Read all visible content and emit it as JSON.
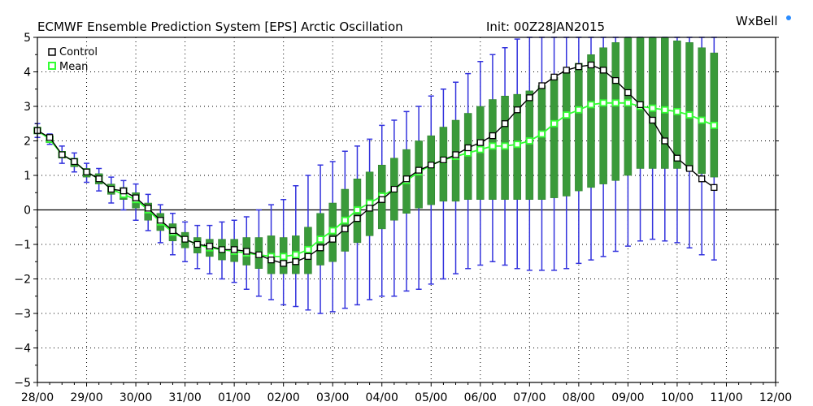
{
  "header": {
    "title": "ECMWF Ensemble Prediction System [EPS] Arctic Oscillation",
    "init": "Init: 00Z28JAN2015",
    "brand": "WxBell"
  },
  "legend": {
    "items": [
      {
        "label": "Control",
        "marker_color": "#000000"
      },
      {
        "label": "Mean",
        "marker_color": "#33ff33"
      }
    ]
  },
  "colors": {
    "control": "#000000",
    "mean": "#33ff33",
    "box_fill": "#3a9a3a",
    "whisker": "#3333dd",
    "brand_dot": "#2a8cff"
  },
  "chart_data": {
    "type": "line",
    "title": "ECMWF Ensemble Prediction System [EPS] Arctic Oscillation",
    "xlabel": "",
    "ylabel": "",
    "ylim": [
      -5,
      5
    ],
    "xlim": [
      0,
      15
    ],
    "grid": true,
    "legend_position": "top-left",
    "x_tick_labels": [
      "28/00",
      "29/00",
      "30/00",
      "31/00",
      "01/00",
      "02/00",
      "03/00",
      "04/00",
      "05/00",
      "06/00",
      "07/00",
      "08/00",
      "09/00",
      "10/00",
      "11/00",
      "12/00"
    ],
    "y_ticks": [
      -5,
      -4,
      -3,
      -2,
      -1,
      0,
      1,
      2,
      3,
      4,
      5
    ],
    "control": [
      [
        0,
        2.3
      ],
      [
        0.25,
        2.1
      ],
      [
        0.5,
        1.6
      ],
      [
        0.75,
        1.4
      ],
      [
        1,
        1.1
      ],
      [
        1.25,
        0.9
      ],
      [
        1.5,
        0.6
      ],
      [
        1.75,
        0.55
      ],
      [
        2,
        0.35
      ],
      [
        2.25,
        0.05
      ],
      [
        2.5,
        -0.3
      ],
      [
        2.75,
        -0.6
      ],
      [
        3,
        -0.85
      ],
      [
        3.25,
        -1.0
      ],
      [
        3.5,
        -1.05
      ],
      [
        3.75,
        -1.15
      ],
      [
        4,
        -1.15
      ],
      [
        4.25,
        -1.2
      ],
      [
        4.5,
        -1.3
      ],
      [
        4.75,
        -1.45
      ],
      [
        5,
        -1.55
      ],
      [
        5.25,
        -1.5
      ],
      [
        5.5,
        -1.35
      ],
      [
        5.75,
        -1.1
      ],
      [
        6,
        -0.85
      ],
      [
        6.25,
        -0.55
      ],
      [
        6.5,
        -0.25
      ],
      [
        6.75,
        0.05
      ],
      [
        7,
        0.3
      ],
      [
        7.25,
        0.6
      ],
      [
        7.5,
        0.9
      ],
      [
        7.75,
        1.15
      ],
      [
        8,
        1.3
      ],
      [
        8.25,
        1.45
      ],
      [
        8.5,
        1.6
      ],
      [
        8.75,
        1.8
      ],
      [
        9,
        1.95
      ],
      [
        9.25,
        2.15
      ],
      [
        9.5,
        2.5
      ],
      [
        9.75,
        2.9
      ],
      [
        10,
        3.25
      ],
      [
        10.25,
        3.6
      ],
      [
        10.5,
        3.85
      ],
      [
        10.75,
        4.05
      ],
      [
        11,
        4.15
      ],
      [
        11.25,
        4.2
      ],
      [
        11.5,
        4.05
      ],
      [
        11.75,
        3.75
      ],
      [
        12,
        3.4
      ],
      [
        12.25,
        3.05
      ],
      [
        12.5,
        2.6
      ],
      [
        12.75,
        2.0
      ],
      [
        13,
        1.5
      ],
      [
        13.25,
        1.2
      ],
      [
        13.5,
        0.9
      ],
      [
        13.75,
        0.65
      ]
    ],
    "mean": [
      [
        0,
        2.3
      ],
      [
        0.25,
        2.05
      ],
      [
        0.5,
        1.6
      ],
      [
        0.75,
        1.4
      ],
      [
        1,
        1.1
      ],
      [
        1.25,
        0.9
      ],
      [
        1.5,
        0.6
      ],
      [
        1.75,
        0.45
      ],
      [
        2,
        0.3
      ],
      [
        2.25,
        0.0
      ],
      [
        2.5,
        -0.35
      ],
      [
        2.75,
        -0.65
      ],
      [
        3,
        -0.85
      ],
      [
        3.25,
        -1.0
      ],
      [
        3.5,
        -1.1
      ],
      [
        3.75,
        -1.15
      ],
      [
        4,
        -1.2
      ],
      [
        4.25,
        -1.25
      ],
      [
        4.5,
        -1.3
      ],
      [
        4.75,
        -1.35
      ],
      [
        5,
        -1.35
      ],
      [
        5.25,
        -1.3
      ],
      [
        5.5,
        -1.15
      ],
      [
        5.75,
        -0.85
      ],
      [
        6,
        -0.6
      ],
      [
        6.25,
        -0.3
      ],
      [
        6.5,
        0.0
      ],
      [
        6.75,
        0.2
      ],
      [
        7,
        0.4
      ],
      [
        7.25,
        0.6
      ],
      [
        7.5,
        0.85
      ],
      [
        7.75,
        1.1
      ],
      [
        8,
        1.3
      ],
      [
        8.25,
        1.45
      ],
      [
        8.5,
        1.55
      ],
      [
        8.75,
        1.65
      ],
      [
        9,
        1.75
      ],
      [
        9.25,
        1.85
      ],
      [
        9.5,
        1.85
      ],
      [
        9.75,
        1.9
      ],
      [
        10,
        2.0
      ],
      [
        10.25,
        2.2
      ],
      [
        10.5,
        2.5
      ],
      [
        10.75,
        2.75
      ],
      [
        11,
        2.9
      ],
      [
        11.25,
        3.05
      ],
      [
        11.5,
        3.1
      ],
      [
        11.75,
        3.1
      ],
      [
        12,
        3.1
      ],
      [
        12.25,
        3.0
      ],
      [
        12.5,
        2.95
      ],
      [
        12.75,
        2.9
      ],
      [
        13,
        2.85
      ],
      [
        13.25,
        2.75
      ],
      [
        13.5,
        2.6
      ],
      [
        13.75,
        2.45
      ]
    ],
    "spread": [
      [
        0,
        2.2,
        2.4,
        2.1,
        2.5
      ],
      [
        0.25,
        1.95,
        2.15,
        1.9,
        2.2
      ],
      [
        0.5,
        1.5,
        1.7,
        1.35,
        1.85
      ],
      [
        0.75,
        1.25,
        1.5,
        1.1,
        1.65
      ],
      [
        1,
        0.95,
        1.2,
        0.8,
        1.35
      ],
      [
        1.25,
        0.75,
        1.05,
        0.55,
        1.2
      ],
      [
        1.5,
        0.45,
        0.75,
        0.2,
        0.95
      ],
      [
        1.75,
        0.3,
        0.65,
        0.0,
        0.85
      ],
      [
        2,
        0.05,
        0.5,
        -0.3,
        0.75
      ],
      [
        2.25,
        -0.3,
        0.2,
        -0.6,
        0.45
      ],
      [
        2.5,
        -0.6,
        -0.1,
        -0.95,
        0.15
      ],
      [
        2.75,
        -0.9,
        -0.4,
        -1.3,
        -0.1
      ],
      [
        3,
        -1.1,
        -0.65,
        -1.5,
        -0.35
      ],
      [
        3.25,
        -1.25,
        -0.8,
        -1.7,
        -0.45
      ],
      [
        3.5,
        -1.35,
        -0.85,
        -1.85,
        -0.45
      ],
      [
        3.75,
        -1.45,
        -0.85,
        -2.0,
        -0.35
      ],
      [
        4,
        -1.5,
        -0.85,
        -2.1,
        -0.3
      ],
      [
        4.25,
        -1.6,
        -0.8,
        -2.3,
        -0.2
      ],
      [
        4.5,
        -1.7,
        -0.8,
        -2.5,
        0.0
      ],
      [
        4.75,
        -1.85,
        -0.75,
        -2.6,
        0.15
      ],
      [
        5,
        -1.85,
        -0.8,
        -2.75,
        0.3
      ],
      [
        5.25,
        -1.85,
        -0.75,
        -2.8,
        0.7
      ],
      [
        5.5,
        -1.85,
        -0.5,
        -2.9,
        1.0
      ],
      [
        5.75,
        -1.6,
        -0.1,
        -3.0,
        1.3
      ],
      [
        6,
        -1.5,
        0.2,
        -2.95,
        1.4
      ],
      [
        6.25,
        -1.2,
        0.6,
        -2.85,
        1.7
      ],
      [
        6.5,
        -0.95,
        0.9,
        -2.75,
        1.85
      ],
      [
        6.75,
        -0.75,
        1.1,
        -2.6,
        2.05
      ],
      [
        7,
        -0.55,
        1.3,
        -2.5,
        2.45
      ],
      [
        7.25,
        -0.3,
        1.5,
        -2.5,
        2.6
      ],
      [
        7.5,
        -0.1,
        1.75,
        -2.35,
        2.85
      ],
      [
        7.75,
        0.05,
        2.0,
        -2.3,
        3.0
      ],
      [
        8,
        0.15,
        2.15,
        -2.15,
        3.3
      ],
      [
        8.25,
        0.25,
        2.4,
        -2.0,
        3.5
      ],
      [
        8.5,
        0.25,
        2.6,
        -1.85,
        3.7
      ],
      [
        8.75,
        0.3,
        2.8,
        -1.7,
        3.95
      ],
      [
        9,
        0.3,
        3.0,
        -1.6,
        4.3
      ],
      [
        9.25,
        0.3,
        3.2,
        -1.5,
        4.5
      ],
      [
        9.5,
        0.3,
        3.3,
        -1.6,
        4.7
      ],
      [
        9.75,
        0.3,
        3.35,
        -1.7,
        4.95
      ],
      [
        10,
        0.3,
        3.45,
        -1.75,
        5.0
      ],
      [
        10.25,
        0.3,
        3.6,
        -1.75,
        5.0
      ],
      [
        10.5,
        0.35,
        3.85,
        -1.75,
        5.0
      ],
      [
        10.75,
        0.4,
        4.0,
        -1.7,
        5.0
      ],
      [
        11,
        0.55,
        4.25,
        -1.55,
        5.0
      ],
      [
        11.25,
        0.65,
        4.5,
        -1.45,
        5.0
      ],
      [
        11.5,
        0.75,
        4.7,
        -1.35,
        5.0
      ],
      [
        11.75,
        0.85,
        4.85,
        -1.2,
        5.0
      ],
      [
        12,
        1.0,
        5.0,
        -1.05,
        5.0
      ],
      [
        12.25,
        1.2,
        5.0,
        -0.9,
        5.0
      ],
      [
        12.5,
        1.2,
        5.0,
        -0.85,
        5.0
      ],
      [
        12.75,
        1.2,
        5.0,
        -0.9,
        5.0
      ],
      [
        13,
        1.2,
        4.9,
        -0.95,
        5.0
      ],
      [
        13.25,
        1.15,
        4.85,
        -1.1,
        5.0
      ],
      [
        13.5,
        1.05,
        4.7,
        -1.3,
        5.0
      ],
      [
        13.75,
        0.95,
        4.55,
        -1.45,
        5.0
      ]
    ]
  }
}
